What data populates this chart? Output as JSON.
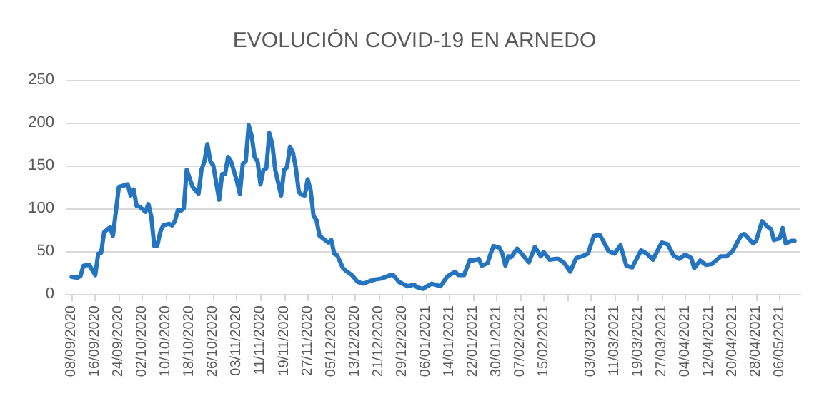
{
  "chart_data": {
    "type": "line",
    "title": "EVOLUCIÓN COVID-19 EN ARNEDO",
    "x": [
      "2020-09-08",
      "2020-09-10",
      "2020-09-11",
      "2020-09-12",
      "2020-09-14",
      "2020-09-15",
      "2020-09-16",
      "2020-09-17",
      "2020-09-18",
      "2020-09-19",
      "2020-09-21",
      "2020-09-22",
      "2020-09-24",
      "2020-09-27",
      "2020-09-28",
      "2020-09-29",
      "2020-09-30",
      "2020-10-01",
      "2020-10-03",
      "2020-10-04",
      "2020-10-05",
      "2020-10-06",
      "2020-10-07",
      "2020-10-08",
      "2020-10-09",
      "2020-10-11",
      "2020-10-12",
      "2020-10-13",
      "2020-10-14",
      "2020-10-15",
      "2020-10-16",
      "2020-10-17",
      "2020-10-18",
      "2020-10-19",
      "2020-10-21",
      "2020-10-22",
      "2020-10-23",
      "2020-10-24",
      "2020-10-25",
      "2020-10-26",
      "2020-10-28",
      "2020-10-29",
      "2020-10-30",
      "2020-10-31",
      "2020-11-01",
      "2020-11-03",
      "2020-11-04",
      "2020-11-05",
      "2020-11-06",
      "2020-11-07",
      "2020-11-08",
      "2020-11-09",
      "2020-11-10",
      "2020-11-11",
      "2020-11-12",
      "2020-11-13",
      "2020-11-14",
      "2020-11-15",
      "2020-11-16",
      "2020-11-18",
      "2020-11-19",
      "2020-11-20",
      "2020-11-21",
      "2020-11-22",
      "2020-11-23",
      "2020-11-24",
      "2020-11-25",
      "2020-11-26",
      "2020-11-27",
      "2020-11-28",
      "2020-11-29",
      "2020-11-30",
      "2020-12-01",
      "2020-12-04",
      "2020-12-05",
      "2020-12-06",
      "2020-12-07",
      "2020-12-09",
      "2020-12-10",
      "2020-12-12",
      "2020-12-14",
      "2020-12-16",
      "2020-12-18",
      "2020-12-20",
      "2020-12-22",
      "2020-12-25",
      "2020-12-26",
      "2020-12-28",
      "2020-12-31",
      "2021-01-02",
      "2021-01-03",
      "2021-01-05",
      "2021-01-06",
      "2021-01-08",
      "2021-01-11",
      "2021-01-13",
      "2021-01-14",
      "2021-01-16",
      "2021-01-17",
      "2021-01-19",
      "2021-01-21",
      "2021-01-22",
      "2021-01-24",
      "2021-01-25",
      "2021-01-27",
      "2021-01-28",
      "2021-01-29",
      "2021-01-31",
      "2021-02-01",
      "2021-02-02",
      "2021-02-03",
      "2021-02-04",
      "2021-02-06",
      "2021-02-08",
      "2021-02-10",
      "2021-02-12",
      "2021-02-14",
      "2021-02-15",
      "2021-02-17",
      "2021-02-19",
      "2021-02-20",
      "2021-02-22",
      "2021-02-24",
      "2021-02-26",
      "2021-02-28",
      "2021-03-02",
      "2021-03-04",
      "2021-03-06",
      "2021-03-07",
      "2021-03-09",
      "2021-03-11",
      "2021-03-13",
      "2021-03-15",
      "2021-03-17",
      "2021-03-20",
      "2021-03-22",
      "2021-03-24",
      "2021-03-27",
      "2021-03-29",
      "2021-03-31",
      "2021-04-02",
      "2021-04-04",
      "2021-04-06",
      "2021-04-07",
      "2021-04-09",
      "2021-04-11",
      "2021-04-13",
      "2021-04-16",
      "2021-04-18",
      "2021-04-20",
      "2021-04-23",
      "2021-04-24",
      "2021-04-27",
      "2021-04-28",
      "2021-04-30",
      "2021-05-02",
      "2021-05-03",
      "2021-05-04",
      "2021-05-06",
      "2021-05-07",
      "2021-05-08",
      "2021-05-10",
      "2021-05-11"
    ],
    "series": [
      {
        "color": "#2474c0",
        "values": [
          20,
          19,
          21,
          33,
          34,
          28,
          22,
          47,
          48,
          72,
          78,
          68,
          125,
          128,
          115,
          122,
          103,
          102,
          96,
          105,
          90,
          56,
          56,
          72,
          80,
          82,
          80,
          85,
          98,
          97,
          100,
          145,
          135,
          125,
          117,
          145,
          155,
          175,
          155,
          150,
          110,
          140,
          140,
          160,
          155,
          132,
          117,
          152,
          155,
          197,
          185,
          160,
          155,
          128,
          145,
          147,
          188,
          175,
          145,
          115,
          145,
          148,
          172,
          165,
          147,
          119,
          116,
          115,
          134,
          121,
          91,
          86,
          68,
          60,
          63,
          47,
          45,
          30,
          27,
          22,
          14,
          12,
          15,
          17,
          18,
          22,
          22,
          14,
          9,
          11,
          8,
          6,
          8,
          12,
          9,
          19,
          22,
          26,
          22,
          22,
          40,
          39,
          41,
          33,
          36,
          47,
          56,
          54,
          47,
          33,
          44,
          43,
          53,
          45,
          37,
          55,
          44,
          49,
          40,
          41,
          41,
          36,
          26,
          42,
          44,
          47,
          68,
          69,
          63,
          50,
          47,
          57,
          33,
          31,
          51,
          47,
          40,
          60,
          58,
          45,
          41,
          46,
          42,
          30,
          39,
          34,
          35,
          44,
          44,
          50,
          69,
          70,
          59,
          62,
          85,
          78,
          76,
          63,
          65,
          77,
          59,
          62,
          62
        ]
      }
    ],
    "xlim": [
      "2020-09-06",
      "2021-05-13"
    ],
    "xticks": [
      {
        "value": "2020-09-08",
        "label": "08/09/2020"
      },
      {
        "value": "2020-09-16",
        "label": "16/09/2020"
      },
      {
        "value": "2020-09-24",
        "label": "24/09/2020"
      },
      {
        "value": "2020-10-02",
        "label": "02/10/2020"
      },
      {
        "value": "2020-10-10",
        "label": "10/10/2020"
      },
      {
        "value": "2020-10-18",
        "label": "18/10/2020"
      },
      {
        "value": "2020-10-26",
        "label": "26/10/2020"
      },
      {
        "value": "2020-11-03",
        "label": "03/11/2020"
      },
      {
        "value": "2020-11-11",
        "label": "11/11/2020"
      },
      {
        "value": "2020-11-19",
        "label": "19/11/2020"
      },
      {
        "value": "2020-11-27",
        "label": "27/11/2020"
      },
      {
        "value": "2020-12-05",
        "label": "05/12/2020"
      },
      {
        "value": "2020-12-13",
        "label": "13/12/2020"
      },
      {
        "value": "2020-12-21",
        "label": "21/12/2020"
      },
      {
        "value": "2020-12-29",
        "label": "29/12/2020"
      },
      {
        "value": "2021-01-06",
        "label": "06/01/2021"
      },
      {
        "value": "2021-01-14",
        "label": "14/01/2021"
      },
      {
        "value": "2021-01-22",
        "label": "22/01/2021"
      },
      {
        "value": "2021-01-30",
        "label": "30/01/2021"
      },
      {
        "value": "2021-02-07",
        "label": "07/02/2021"
      },
      {
        "value": "2021-02-15",
        "label": "15/02/2021"
      },
      {
        "value": "2021-02-23",
        "label": null
      },
      {
        "value": "2021-03-03",
        "label": "03/03/2021"
      },
      {
        "value": "2021-03-11",
        "label": "11/03/2021"
      },
      {
        "value": "2021-03-19",
        "label": "19/03/2021"
      },
      {
        "value": "2021-03-27",
        "label": "27/03/2021"
      },
      {
        "value": "2021-04-04",
        "label": "04/04/2021"
      },
      {
        "value": "2021-04-12",
        "label": "12/04/2021"
      },
      {
        "value": "2021-04-20",
        "label": "20/04/2021"
      },
      {
        "value": "2021-04-28",
        "label": "28/04/2021"
      },
      {
        "value": "2021-05-06",
        "label": "06/05/2021"
      }
    ],
    "ylim": [
      0,
      250
    ],
    "yticks": [
      0,
      50,
      100,
      150,
      200,
      250
    ],
    "grid": "y",
    "marker": "none",
    "line_style": "solid"
  }
}
